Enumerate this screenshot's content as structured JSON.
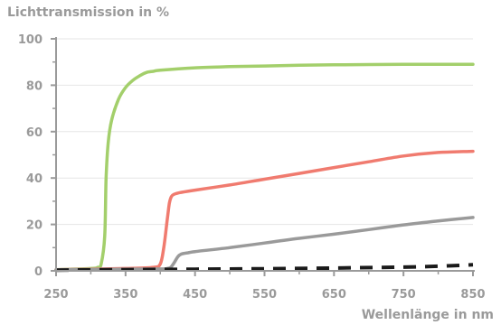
{
  "chart_data": {
    "type": "line",
    "title": "",
    "ylabel": "Lichttransmission in %",
    "xlabel": "Wellenlänge in nm",
    "xlim": [
      250,
      850
    ],
    "ylim": [
      0,
      100
    ],
    "x_ticks": [
      250,
      350,
      450,
      550,
      650,
      750,
      850
    ],
    "x_tick_labels": [
      "250",
      "350",
      "450",
      "550",
      "650",
      "750",
      "850"
    ],
    "y_ticks": [
      0,
      20,
      40,
      60,
      80,
      100
    ],
    "y_tick_labels": [
      "0",
      "20",
      "40",
      "60",
      "80",
      "100"
    ],
    "grid": "horizontal",
    "legend": "none",
    "series": [
      {
        "color": "#a3cf6b",
        "style": "solid",
        "x": [
          250,
          300,
          310,
          315,
          320,
          322,
          325,
          330,
          340,
          350,
          360,
          370,
          380,
          390,
          400,
          450,
          500,
          550,
          600,
          650,
          700,
          750,
          800,
          850
        ],
        "y": [
          0.5,
          1,
          1.5,
          3,
          15,
          40,
          55,
          65,
          74,
          79,
          82,
          84,
          85.5,
          86,
          86.5,
          87.5,
          88,
          88.3,
          88.6,
          88.8,
          88.9,
          89,
          89,
          89
        ]
      },
      {
        "color": "#f07b6f",
        "style": "solid",
        "x": [
          250,
          350,
          390,
          400,
          405,
          410,
          413,
          416,
          420,
          430,
          450,
          500,
          550,
          600,
          650,
          700,
          750,
          800,
          850
        ],
        "y": [
          0.5,
          1,
          1.5,
          3,
          10,
          22,
          29,
          32,
          33,
          33.8,
          34.8,
          37,
          39.5,
          42,
          44.5,
          47,
          49.5,
          51,
          51.5
        ]
      },
      {
        "color": "#9a9a9a",
        "style": "solid",
        "x": [
          250,
          400,
          410,
          415,
          420,
          425,
          430,
          440,
          450,
          500,
          550,
          600,
          650,
          700,
          750,
          800,
          850
        ],
        "y": [
          0.5,
          0.8,
          1,
          1.5,
          3.5,
          6,
          7.2,
          7.8,
          8.3,
          10,
          12,
          14,
          15.8,
          17.8,
          19.8,
          21.5,
          23
        ]
      },
      {
        "color": "#1a1a1a",
        "style": "dashed",
        "x": [
          250,
          350,
          450,
          550,
          650,
          750,
          800,
          850
        ],
        "y": [
          0.3,
          0.5,
          0.7,
          0.9,
          1.2,
          1.6,
          2.0,
          2.6
        ]
      }
    ]
  }
}
